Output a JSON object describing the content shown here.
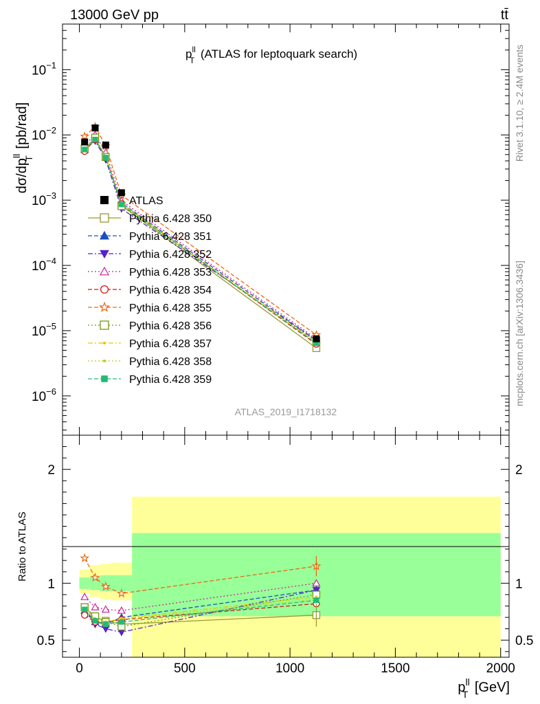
{
  "header": {
    "energy_label": "13000 GeV pp",
    "process_label": "tt̄"
  },
  "side": {
    "rivet_label": "Rivet 3.1.10, ≥ 2.4M events",
    "mcplots_label": "mcplots.cern.ch [arXiv:1306.3436]"
  },
  "chart_data": [
    {
      "type": "line",
      "title_main": "p",
      "title_sup": "ll",
      "title_sub": "T",
      "title_rest": " (ATLAS for leptoquark search)",
      "ylabel_main": "dσ/dp",
      "ylabel_sup": "ll",
      "ylabel_sub": "T",
      "ylabel_rest": " [pb/rad]",
      "yscale": "log",
      "ylim": [
        2.5e-07,
        0.5
      ],
      "xlim": [
        -80,
        2040
      ],
      "ytick_labels": [
        {
          "base": "10",
          "exp": "−1",
          "value": 0.1
        },
        {
          "base": "10",
          "exp": "−2",
          "value": 0.01
        },
        {
          "base": "10",
          "exp": "−3",
          "value": 0.001
        },
        {
          "base": "10",
          "exp": "−4",
          "value": 0.0001
        },
        {
          "base": "10",
          "exp": "−5",
          "value": 1e-05
        },
        {
          "base": "10",
          "exp": "−6",
          "value": 1e-06
        }
      ],
      "watermark": "ATLAS_2019_I1718132",
      "legend_position": "center-left",
      "x": [
        25,
        75,
        125,
        200,
        1125
      ],
      "reference": {
        "name": "ATLAS",
        "values": [
          0.0078,
          0.0128,
          0.007,
          0.0013,
          7.5e-06
        ],
        "color": "#000000"
      },
      "series": [
        {
          "name": "Pythia 6.428 350",
          "values": [
            0.0061,
            0.0089,
            0.0046,
            0.00083,
            5.4e-06
          ],
          "color": "#999933",
          "marker": "open-square",
          "dash": "solid"
        },
        {
          "name": "Pythia 6.428 351",
          "values": [
            0.0059,
            0.0085,
            0.0045,
            0.00091,
            7.1e-06
          ],
          "color": "#1a4fbf",
          "marker": "triangle-up",
          "dash": "dashed"
        },
        {
          "name": "Pythia 6.428 352",
          "values": [
            0.0059,
            0.0081,
            0.0042,
            0.00074,
            7.1e-06
          ],
          "color": "#5522cc",
          "marker": "triangle-down",
          "dash": "dashdot"
        },
        {
          "name": "Pythia 6.428 353",
          "values": [
            0.0069,
            0.0101,
            0.0054,
            0.00098,
            7.5e-06
          ],
          "color": "#cc2299",
          "marker": "open-triangle",
          "dash": "dotted"
        },
        {
          "name": "Pythia 6.428 354",
          "values": [
            0.0056,
            0.0085,
            0.0046,
            0.00088,
            6.2e-06
          ],
          "color": "#dd1111",
          "marker": "open-circle",
          "dash": "dashed"
        },
        {
          "name": "Pythia 6.428 355",
          "values": [
            0.0095,
            0.0134,
            0.0068,
            0.00119,
            8.6e-06
          ],
          "color": "#ee6611",
          "marker": "open-star",
          "dash": "dashed"
        },
        {
          "name": "Pythia 6.428 356",
          "values": [
            0.0062,
            0.0091,
            0.0046,
            0.00081,
            6.8e-06
          ],
          "color": "#779911",
          "marker": "open-square",
          "dash": "dotted"
        },
        {
          "name": "Pythia 6.428 357",
          "values": [
            0.006,
            0.0087,
            0.0046,
            0.00089,
            6.6e-06
          ],
          "color": "#e6c700",
          "marker": "dot",
          "dash": "dashdot"
        },
        {
          "name": "Pythia 6.428 358",
          "values": [
            0.0061,
            0.0088,
            0.0046,
            0.00088,
            6.4e-06
          ],
          "color": "#bbcc22",
          "marker": "dot",
          "dash": "dotted"
        },
        {
          "name": "Pythia 6.428 359",
          "values": [
            0.006,
            0.0085,
            0.0045,
            0.00086,
            6.4e-06
          ],
          "color": "#22bb77",
          "marker": "square",
          "dash": "dashed"
        }
      ]
    },
    {
      "type": "line",
      "ylabel": "Ratio to ATLAS",
      "xlabel_main": "p",
      "xlabel_sup": "ll",
      "xlabel_sub": "T",
      "xlabel_rest": " [GeV]",
      "ylim": [
        0.35,
        2.3
      ],
      "xlim": [
        -80,
        2040
      ],
      "xtick_labels": [
        "0",
        "500",
        "1000",
        "1500",
        "2000"
      ],
      "xtick_values": [
        0,
        500,
        1000,
        1500,
        2000
      ],
      "ytick_labels": [
        "0.5",
        "1",
        "2"
      ],
      "ytick_values": [
        0.5,
        1,
        2
      ],
      "bands": [
        {
          "x0": 0,
          "x1": 50,
          "inner": [
            0.95,
            1.05
          ],
          "outer": [
            0.91,
            1.12
          ]
        },
        {
          "x0": 50,
          "x1": 100,
          "inner": [
            0.94,
            1.06
          ],
          "outer": [
            0.88,
            1.16
          ]
        },
        {
          "x0": 100,
          "x1": 150,
          "inner": [
            0.93,
            1.07
          ],
          "outer": [
            0.86,
            1.17
          ]
        },
        {
          "x0": 150,
          "x1": 250,
          "inner": [
            0.93,
            1.07
          ],
          "outer": [
            0.85,
            1.18
          ]
        },
        {
          "x0": 250,
          "x1": 2000,
          "inner": [
            0.71,
            1.44
          ],
          "outer": [
            0.0,
            1.76
          ]
        }
      ],
      "band_colors": {
        "inner": "#99ff99",
        "outer": "#ffff99"
      },
      "x": [
        25,
        75,
        125,
        200,
        1125
      ],
      "series": [
        {
          "name": "Pythia 6.428 350",
          "values": [
            0.79,
            0.7,
            0.67,
            0.64,
            0.72
          ]
        },
        {
          "name": "Pythia 6.428 351",
          "values": [
            0.76,
            0.66,
            0.64,
            0.7,
            0.94
          ]
        },
        {
          "name": "Pythia 6.428 352",
          "values": [
            0.76,
            0.64,
            0.6,
            0.57,
            0.94
          ]
        },
        {
          "name": "Pythia 6.428 353",
          "values": [
            0.88,
            0.79,
            0.77,
            0.76,
            1.0
          ]
        },
        {
          "name": "Pythia 6.428 354",
          "values": [
            0.72,
            0.66,
            0.66,
            0.68,
            0.82
          ]
        },
        {
          "name": "Pythia 6.428 355",
          "values": [
            1.22,
            1.05,
            0.97,
            0.91,
            1.15
          ]
        },
        {
          "name": "Pythia 6.428 356",
          "values": [
            0.79,
            0.71,
            0.66,
            0.62,
            0.9
          ]
        },
        {
          "name": "Pythia 6.428 357",
          "values": [
            0.77,
            0.68,
            0.66,
            0.69,
            0.88
          ]
        },
        {
          "name": "Pythia 6.428 358",
          "values": [
            0.78,
            0.69,
            0.66,
            0.68,
            0.86
          ]
        },
        {
          "name": "Pythia 6.428 359",
          "values": [
            0.77,
            0.67,
            0.64,
            0.66,
            0.85
          ]
        }
      ],
      "error_355_last": [
        1.06,
        1.24
      ],
      "error_350_last": [
        0.62,
        0.82
      ]
    }
  ]
}
